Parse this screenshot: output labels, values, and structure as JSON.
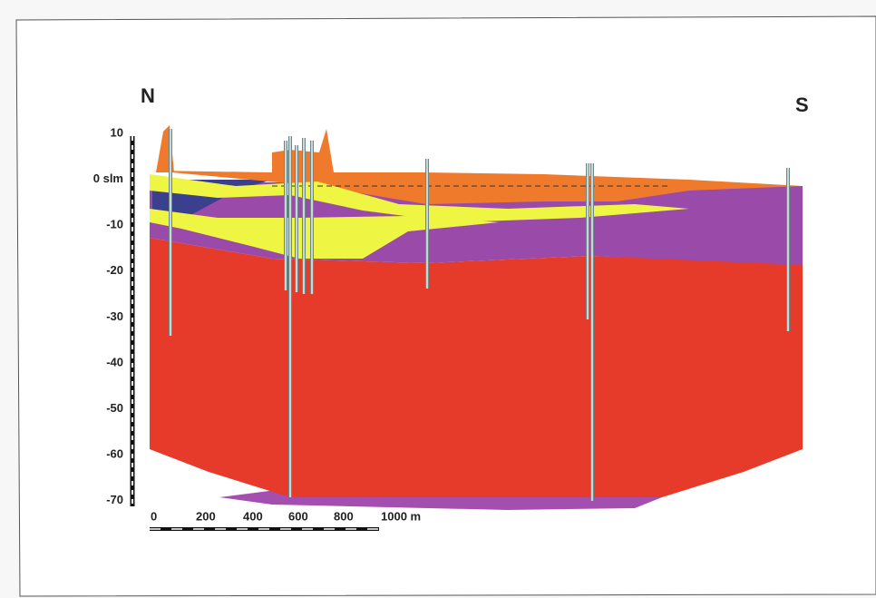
{
  "compass": {
    "north": "N",
    "south": "S"
  },
  "depth_scale": {
    "labels": [
      "10",
      "0 slm",
      "-10",
      "-20",
      "-30",
      "-40",
      "-50",
      "-60",
      "-70"
    ]
  },
  "distance_scale": {
    "labels": [
      "0",
      "200",
      "400",
      "600",
      "800",
      "1000 m"
    ]
  }
}
